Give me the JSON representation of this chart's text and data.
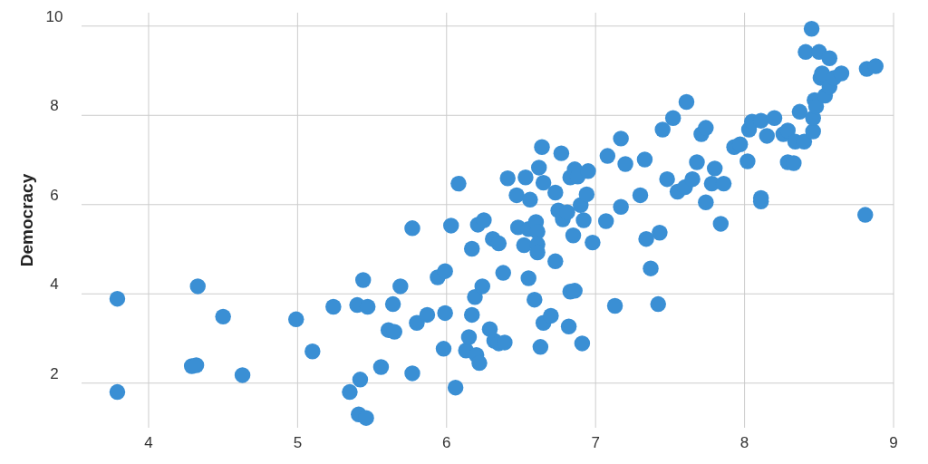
{
  "chart_data": {
    "type": "scatter",
    "ylabel": "Democracy",
    "xlim": [
      3.55,
      9
    ],
    "ylim": [
      1,
      10.3
    ],
    "xticks": [
      4,
      5,
      6,
      7,
      8,
      9
    ],
    "yticks": [
      2,
      4,
      6,
      8,
      10
    ],
    "grid": true,
    "marker": "circle",
    "series": [
      {
        "color": "#3a8fd4",
        "x": [
          3.79,
          3.79,
          4.33,
          4.29,
          4.32,
          4.5,
          4.63,
          4.99,
          5.1,
          5.24,
          5.35,
          5.4,
          5.44,
          5.42,
          5.41,
          5.46,
          5.47,
          5.56,
          5.61,
          5.64,
          5.65,
          5.69,
          5.77,
          5.77,
          5.8,
          5.87,
          5.94,
          5.99,
          5.98,
          5.99,
          6.03,
          6.08,
          6.06,
          6.13,
          6.15,
          6.17,
          6.17,
          6.19,
          6.2,
          6.22,
          6.21,
          6.24,
          6.25,
          6.29,
          6.31,
          6.32,
          6.35,
          6.35,
          6.38,
          6.39,
          6.41,
          6.47,
          6.48,
          6.52,
          6.53,
          6.55,
          6.55,
          6.56,
          6.59,
          6.6,
          6.61,
          6.61,
          6.61,
          6.62,
          6.63,
          6.64,
          6.65,
          6.65,
          6.7,
          6.73,
          6.73,
          6.75,
          6.77,
          6.78,
          6.81,
          6.82,
          6.83,
          6.83,
          6.86,
          6.86,
          6.85,
          6.88,
          6.9,
          6.91,
          6.92,
          6.94,
          6.95,
          6.98,
          7.07,
          7.08,
          7.13,
          7.17,
          7.17,
          7.2,
          7.3,
          7.33,
          7.34,
          7.37,
          7.42,
          7.43,
          7.45,
          7.48,
          7.52,
          7.55,
          7.6,
          7.61,
          7.65,
          7.68,
          7.71,
          7.74,
          7.74,
          7.78,
          7.8,
          7.84,
          7.86,
          7.93,
          7.97,
          8.02,
          8.03,
          8.05,
          8.11,
          8.11,
          8.11,
          8.15,
          8.2,
          8.26,
          8.29,
          8.29,
          8.33,
          8.34,
          8.37,
          8.4,
          8.41,
          8.45,
          8.47,
          8.46,
          8.46,
          8.48,
          8.5,
          8.51,
          8.52,
          8.54,
          8.57,
          8.57,
          8.6,
          8.65,
          8.81,
          8.82,
          8.88
        ],
        "values": [
          3.89,
          1.8,
          4.17,
          2.38,
          2.4,
          3.49,
          2.18,
          3.43,
          2.71,
          3.71,
          1.8,
          3.75,
          4.31,
          2.08,
          1.3,
          1.22,
          3.71,
          2.36,
          3.19,
          3.77,
          3.15,
          4.17,
          5.47,
          2.22,
          3.35,
          3.53,
          4.37,
          4.51,
          2.77,
          3.57,
          5.53,
          6.47,
          1.9,
          2.73,
          3.03,
          3.53,
          5.01,
          3.93,
          2.63,
          2.45,
          5.55,
          4.17,
          5.65,
          3.21,
          5.23,
          2.95,
          5.13,
          2.89,
          4.47,
          2.91,
          6.59,
          6.21,
          5.49,
          5.09,
          6.61,
          4.35,
          5.45,
          6.11,
          3.87,
          5.61,
          5.39,
          5.11,
          4.93,
          6.83,
          2.81,
          7.29,
          6.49,
          3.35,
          3.51,
          4.73,
          6.27,
          5.87,
          7.15,
          5.67,
          5.83,
          3.27,
          6.61,
          4.05,
          6.79,
          4.07,
          5.31,
          6.63,
          5.99,
          2.89,
          5.65,
          6.23,
          6.75,
          5.15,
          5.63,
          7.09,
          3.73,
          5.95,
          7.48,
          6.91,
          6.21,
          7.01,
          5.23,
          4.57,
          3.77,
          5.37,
          7.68,
          6.57,
          7.94,
          6.29,
          6.39,
          8.3,
          6.57,
          6.95,
          7.58,
          7.72,
          6.05,
          6.47,
          6.81,
          5.57,
          6.47,
          7.29,
          7.35,
          6.97,
          7.68,
          7.86,
          7.88,
          6.15,
          6.07,
          7.54,
          7.94,
          7.58,
          7.66,
          6.95,
          6.93,
          7.41,
          8.08,
          7.41,
          9.42,
          9.94,
          8.34,
          7.64,
          7.94,
          8.2,
          9.42,
          8.84,
          8.94,
          8.44,
          9.28,
          8.64,
          8.84,
          8.94,
          5.77,
          9.04,
          9.1
        ]
      }
    ]
  }
}
